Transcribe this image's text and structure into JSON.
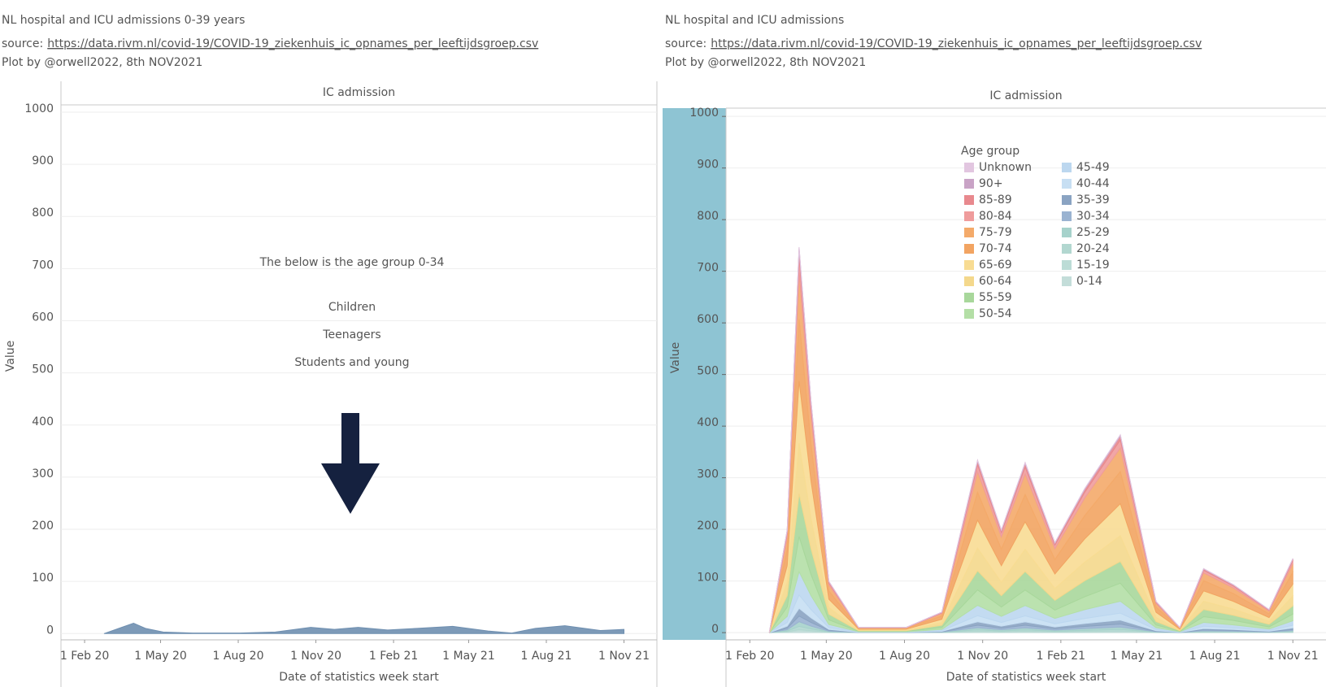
{
  "chart_data": [
    {
      "type": "area",
      "title": "NL hospital and ICU admissions 0-39 years",
      "source": "source:",
      "source_link": "https://data.rivm.nl/covid-19/COVID-19_ziekenhuis_ic_opnames_per_leeftijdsgroep.csv",
      "credit": "Plot by @orwell2022, 8th NOV2021",
      "subtitle": "IC admission",
      "annotations": [
        "The below is the age group 0-34",
        "Children",
        "Teenagers",
        "Students and young"
      ],
      "ylabel": "Value",
      "xlabel": "Date of statistics week start",
      "x": [
        "2020-02-24",
        "2020-03-16",
        "2020-03-30",
        "2020-04-13",
        "2020-05-04",
        "2020-06-08",
        "2020-08-03",
        "2020-09-14",
        "2020-10-26",
        "2020-11-23",
        "2020-12-21",
        "2021-01-25",
        "2021-03-01",
        "2021-04-12",
        "2021-05-24",
        "2021-06-21",
        "2021-07-19",
        "2021-08-23",
        "2021-10-04",
        "2021-11-01"
      ],
      "series": [
        {
          "color": "#6f8fb0",
          "values": [
            0,
            12,
            20,
            10,
            3,
            1,
            1,
            3,
            12,
            8,
            12,
            7,
            10,
            14,
            5,
            1,
            10,
            15,
            6,
            8
          ]
        }
      ],
      "xlim": [
        "2020-01-04",
        "2021-12-10"
      ],
      "xticks": [
        {
          "value": "2020-02-01",
          "label": "1 Feb 20"
        },
        {
          "value": "2020-05-01",
          "label": "1 May 20"
        },
        {
          "value": "2020-08-01",
          "label": "1 Aug 20"
        },
        {
          "value": "2020-11-01",
          "label": "1 Nov 20"
        },
        {
          "value": "2021-02-01",
          "label": "1 Feb 21"
        },
        {
          "value": "2021-05-01",
          "label": "1 May 21"
        },
        {
          "value": "2021-08-01",
          "label": "1 Aug 21"
        },
        {
          "value": "2021-11-01",
          "label": "1 Nov 21"
        }
      ],
      "ylim": [
        -12,
        1014
      ],
      "yticks": [
        0,
        100,
        200,
        300,
        400,
        500,
        600,
        700,
        800,
        900,
        1000
      ],
      "grid": true
    },
    {
      "type": "area",
      "title": "NL hospital and ICU admissions",
      "source": "source:",
      "source_link": "https://data.rivm.nl/covid-19/COVID-19_ziekenhuis_ic_opnames_per_leeftijdsgroep.csv",
      "credit": "Plot by @orwell2022, 8th NOV2021",
      "subtitle": "IC admission",
      "ylabel": "Value",
      "xlabel": "Date of statistics week start",
      "legend_title": "Age group",
      "x": [
        "2020-02-24",
        "2020-03-16",
        "2020-03-30",
        "2020-04-13",
        "2020-05-04",
        "2020-06-08",
        "2020-08-03",
        "2020-09-14",
        "2020-10-26",
        "2020-11-23",
        "2020-12-21",
        "2021-01-25",
        "2021-03-01",
        "2021-04-12",
        "2021-05-24",
        "2021-06-21",
        "2021-07-19",
        "2021-08-23",
        "2021-10-04",
        "2021-11-01"
      ],
      "series": [
        {
          "name": "Unknown",
          "color": "#e2c6e0",
          "values": [
            0,
            0,
            1,
            0.5,
            0,
            0,
            0,
            0,
            0.5,
            0.3,
            0.5,
            0.3,
            0.4,
            0.5,
            0,
            0,
            0.2,
            0.1,
            0,
            0.2
          ]
        },
        {
          "name": "90+",
          "color": "#c9a3c6",
          "values": [
            0,
            1,
            3.8,
            2.3,
            0.5,
            0,
            0,
            0.2,
            1.7,
            1,
            1.7,
            0.9,
            1.4,
            1.9,
            0.3,
            0,
            0.6,
            0.5,
            0.2,
            0.7
          ]
        },
        {
          "name": "85-89",
          "color": "#e8898e",
          "values": [
            0,
            4,
            15,
            9,
            2,
            0.2,
            0.2,
            0.8,
            6.7,
            4,
            6.6,
            3.5,
            5.6,
            7.7,
            1.2,
            0.2,
            2.5,
            1.9,
            0.9,
            2.9
          ]
        },
        {
          "name": "80-84",
          "color": "#ef9c9c",
          "values": [
            0,
            8,
            30,
            18,
            4,
            0.4,
            0.4,
            1.6,
            13.4,
            8,
            13.2,
            7,
            11.2,
            15.4,
            2.4,
            0.4,
            5,
            3.8,
            1.8,
            5.8
          ]
        },
        {
          "name": "75-79",
          "color": "#f4aa6a",
          "values": [
            0,
            24,
            90,
            54,
            12,
            1.2,
            1.2,
            4.8,
            40,
            24,
            40,
            21,
            34,
            46,
            7,
            1.2,
            15,
            11,
            5.4,
            17
          ]
        },
        {
          "name": "70-74",
          "color": "#f2a462",
          "values": [
            0,
            32,
            120,
            72,
            16,
            1.6,
            1.6,
            6.4,
            54,
            32,
            53,
            28,
            45,
            62,
            10,
            1.6,
            20,
            15,
            7.2,
            23
          ]
        },
        {
          "name": "65-69",
          "color": "#f8dc93",
          "values": [
            0,
            32,
            120,
            72,
            16,
            1.6,
            1.6,
            6.4,
            54,
            32,
            53,
            28,
            45,
            62,
            10,
            1.6,
            20,
            15,
            7.2,
            23
          ]
        },
        {
          "name": "60-64",
          "color": "#f4d88c",
          "values": [
            0,
            26,
            98,
            59,
            13,
            1.3,
            1.3,
            5.2,
            44,
            26,
            43,
            23,
            36,
            50,
            8,
            1.3,
            16,
            12,
            5.9,
            19
          ]
        },
        {
          "name": "55-59",
          "color": "#a8d79b",
          "values": [
            0,
            22,
            83,
            50,
            11,
            1.1,
            1.1,
            4.4,
            37,
            22,
            36,
            19,
            31,
            42,
            6.6,
            1.1,
            14,
            10,
            5,
            16
          ]
        },
        {
          "name": "50-54",
          "color": "#b4dfa6",
          "values": [
            0,
            18,
            68,
            41,
            9,
            0.9,
            0.9,
            3.6,
            30,
            18,
            30,
            16,
            25,
            35,
            5.4,
            0.9,
            11,
            8.6,
            4,
            13
          ]
        },
        {
          "name": "45-49",
          "color": "#bcd7ef",
          "values": [
            0,
            12,
            45,
            27,
            6,
            0.6,
            0.6,
            2.4,
            20,
            12,
            20,
            10.5,
            17,
            23,
            3.6,
            0.6,
            7.5,
            5.7,
            2.7,
            8.7
          ]
        },
        {
          "name": "40-44",
          "color": "#c7dff3",
          "values": [
            0,
            7,
            26,
            16,
            3.5,
            0.4,
            0.4,
            1.4,
            11.7,
            7,
            11.6,
            6.1,
            9.8,
            13.5,
            2.1,
            0.4,
            4.4,
            3.3,
            1.6,
            5.1
          ]
        },
        {
          "name": "35-39",
          "color": "#8aa3c2",
          "values": [
            0,
            4,
            15,
            9,
            2,
            0.2,
            0.2,
            0.8,
            6.7,
            4,
            6.6,
            3.5,
            5.6,
            7.7,
            1.2,
            0.2,
            2.5,
            1.9,
            0.9,
            2.9
          ]
        },
        {
          "name": "30-34",
          "color": "#9ab3d1",
          "values": [
            0,
            3,
            11,
            7,
            1.5,
            0.2,
            0.2,
            0.6,
            5,
            3,
            5,
            2.6,
            4.2,
            5.8,
            0.9,
            0.2,
            1.9,
            1.4,
            0.7,
            2.2
          ]
        },
        {
          "name": "25-29",
          "color": "#a6d2cb",
          "values": [
            0,
            2.4,
            9,
            5.4,
            1.2,
            0.1,
            0.1,
            0.5,
            4,
            2.4,
            4,
            2.1,
            3.4,
            4.6,
            0.7,
            0.1,
            1.5,
            1.1,
            0.5,
            1.7
          ]
        },
        {
          "name": "20-24",
          "color": "#b2d7d0",
          "values": [
            0,
            1.6,
            6,
            3.6,
            0.8,
            0.1,
            0.1,
            0.3,
            2.7,
            1.6,
            2.6,
            1.4,
            2.2,
            3.1,
            0.5,
            0.1,
            1,
            0.8,
            0.4,
            1.2
          ]
        },
        {
          "name": "15-19",
          "color": "#bcdcd6",
          "values": [
            0,
            0.6,
            2.3,
            1.4,
            0.3,
            0,
            0,
            0.1,
            1,
            0.6,
            1,
            0.5,
            0.8,
            1.2,
            0.2,
            0,
            0.4,
            0.3,
            0.1,
            0.4
          ]
        },
        {
          "name": "0-14",
          "color": "#c3ddd9",
          "values": [
            0,
            1,
            3.8,
            2.3,
            0.5,
            0.1,
            0.1,
            0.2,
            1.7,
            1,
            1.7,
            0.9,
            1.4,
            1.9,
            0.3,
            0.1,
            0.6,
            0.5,
            0.2,
            0.7
          ]
        }
      ],
      "xlim": [
        "2020-01-04",
        "2021-12-10"
      ],
      "xticks": [
        {
          "value": "2020-02-01",
          "label": "1 Feb 20"
        },
        {
          "value": "2020-05-01",
          "label": "1 May 20"
        },
        {
          "value": "2020-08-01",
          "label": "1 Aug 20"
        },
        {
          "value": "2020-11-01",
          "label": "1 Nov 20"
        },
        {
          "value": "2021-02-01",
          "label": "1 Feb 21"
        },
        {
          "value": "2021-05-01",
          "label": "1 May 21"
        },
        {
          "value": "2021-08-01",
          "label": "1 Aug 21"
        },
        {
          "value": "2021-11-01",
          "label": "1 Nov 21"
        }
      ],
      "ylim": [
        -14,
        1016
      ],
      "yticks": [
        0,
        100,
        200,
        300,
        400,
        500,
        600,
        700,
        800,
        900,
        1000
      ],
      "grid": true
    }
  ]
}
